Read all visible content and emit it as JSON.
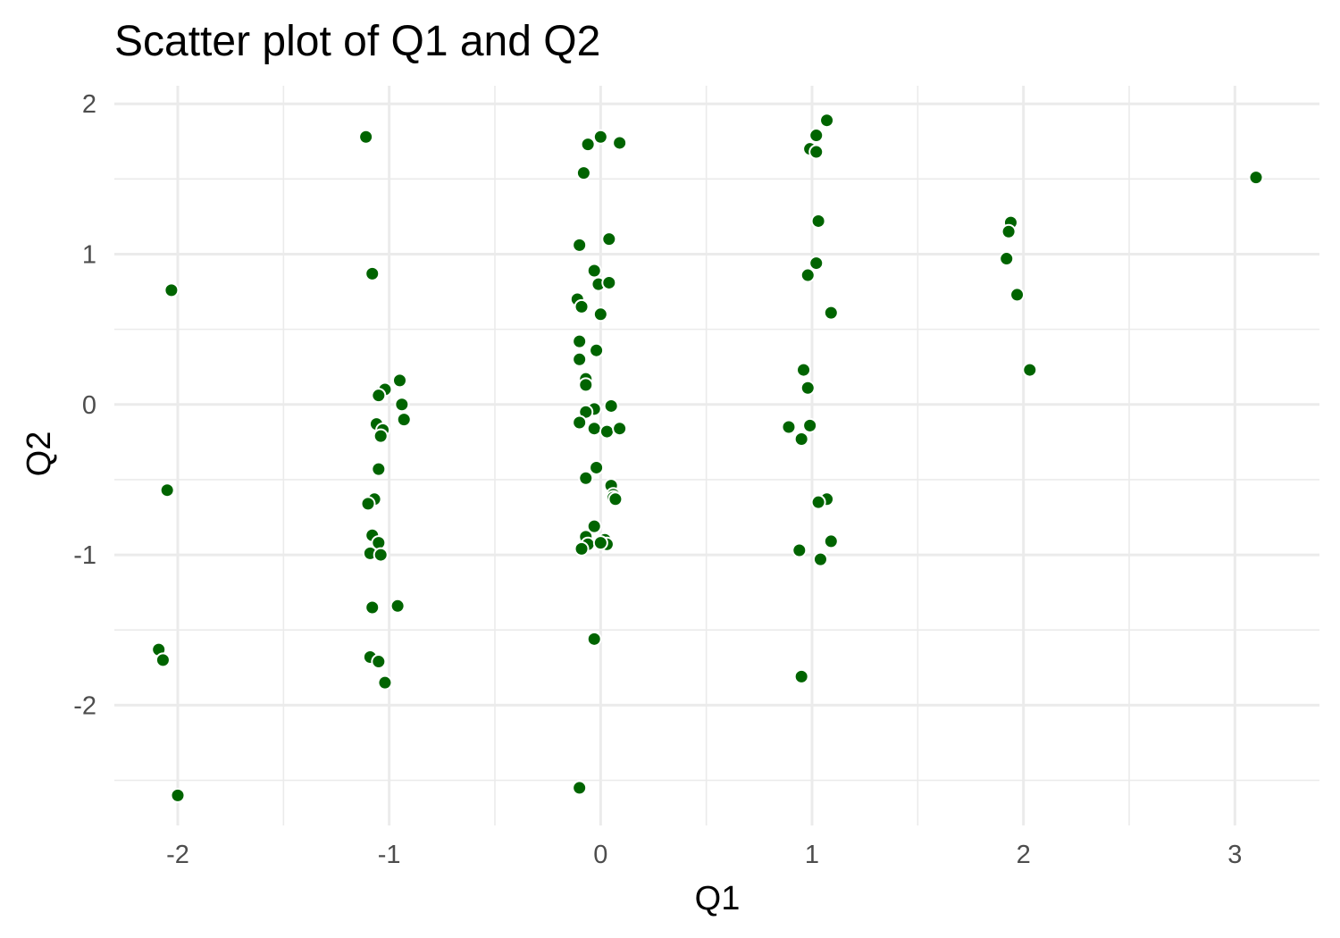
{
  "chart_data": {
    "type": "scatter",
    "title": "Scatter plot of Q1 and Q2",
    "xlabel": "Q1",
    "ylabel": "Q2",
    "xlim": [
      -2.3,
      3.4
    ],
    "ylim": [
      -2.8,
      2.12
    ],
    "x_ticks": [
      -2,
      -1,
      0,
      1,
      2,
      3
    ],
    "y_ticks": [
      -2,
      -1,
      0,
      1,
      2
    ],
    "x_tick_labels": [
      "-2",
      "-1",
      "0",
      "1",
      "2",
      "3"
    ],
    "y_tick_labels": [
      "-2",
      "-1",
      "0",
      "1",
      "2"
    ],
    "grid": true,
    "legend": "none",
    "point_color": "#006400",
    "point_outline": "#ffffff",
    "x": [
      -2.03,
      -2.05,
      -2.09,
      -2.07,
      -2.0,
      -1.11,
      -1.08,
      -1.04,
      -1.02,
      -0.95,
      -1.05,
      -0.94,
      -0.93,
      -1.06,
      -1.03,
      -1.04,
      -1.05,
      -1.07,
      -1.1,
      -1.08,
      -1.05,
      -1.09,
      -1.04,
      -1.08,
      -0.96,
      -1.09,
      -1.05,
      -1.02,
      0.0,
      -0.06,
      0.09,
      -0.08,
      -0.1,
      0.04,
      -0.03,
      -0.01,
      0.04,
      -0.11,
      -0.09,
      0.0,
      -0.1,
      -0.02,
      -0.1,
      -0.07,
      -0.07,
      0.05,
      -0.03,
      -0.07,
      -0.03,
      0.03,
      0.09,
      -0.1,
      -0.02,
      -0.07,
      0.05,
      0.06,
      0.06,
      0.07,
      -0.03,
      -0.07,
      0.02,
      0.03,
      -0.06,
      0.0,
      -0.09,
      -0.03,
      -0.1,
      1.07,
      1.02,
      0.99,
      1.02,
      1.03,
      1.02,
      0.98,
      1.09,
      0.96,
      0.98,
      0.89,
      0.95,
      0.99,
      1.07,
      1.03,
      0.94,
      1.09,
      1.04,
      0.95,
      1.94,
      1.93,
      1.92,
      1.97,
      2.03,
      3.1
    ],
    "y": [
      0.76,
      -0.57,
      -1.63,
      -1.7,
      -2.6,
      1.78,
      0.87,
      0.08,
      0.1,
      0.16,
      0.06,
      0.0,
      -0.1,
      -0.13,
      -0.17,
      -0.21,
      -0.43,
      -0.63,
      -0.66,
      -0.87,
      -0.92,
      -0.99,
      -1.0,
      -1.35,
      -1.34,
      -1.68,
      -1.71,
      -1.85,
      1.78,
      1.73,
      1.74,
      1.54,
      1.06,
      1.1,
      0.89,
      0.8,
      0.81,
      0.7,
      0.65,
      0.6,
      0.42,
      0.36,
      0.3,
      0.17,
      0.13,
      -0.01,
      -0.03,
      -0.05,
      -0.16,
      -0.18,
      -0.16,
      -0.12,
      -0.42,
      -0.49,
      -0.54,
      -0.6,
      -0.62,
      -0.63,
      -0.81,
      -0.88,
      -0.9,
      -0.93,
      -0.93,
      -0.92,
      -0.96,
      -1.56,
      -2.55,
      1.89,
      1.79,
      1.7,
      1.68,
      1.22,
      0.94,
      0.86,
      0.61,
      0.23,
      0.11,
      -0.15,
      -0.23,
      -0.14,
      -0.63,
      -0.65,
      -0.97,
      -0.91,
      -1.03,
      -1.81,
      1.21,
      1.15,
      0.97,
      0.73,
      0.23,
      1.51
    ]
  }
}
